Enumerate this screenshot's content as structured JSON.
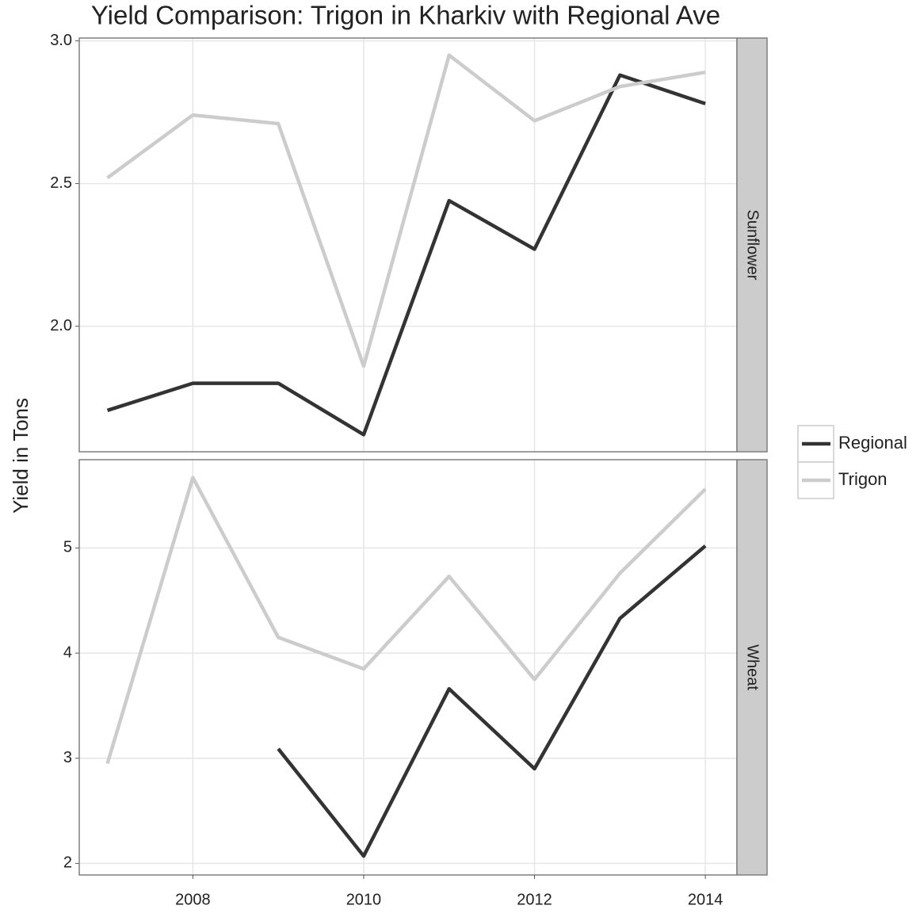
{
  "chart_data": {
    "type": "line",
    "title": "Yield Comparison: Trigon in Kharkiv with Regional Ave",
    "ylabel": "Yield in Tons",
    "x": [
      2007,
      2008,
      2009,
      2010,
      2011,
      2012,
      2013,
      2014
    ],
    "xlim": [
      2006.67,
      2014.37
    ],
    "xticks": [
      2008,
      2010,
      2012,
      2014
    ],
    "grid": true,
    "legend": "right",
    "series": [
      {
        "name": "Regional",
        "color": "#333333"
      },
      {
        "name": "Trigon",
        "color": "#cccccc"
      }
    ],
    "facets": [
      {
        "label": "Sunflower",
        "ylim": [
          1.56,
          3.01
        ],
        "yticks": [
          {
            "value": 2,
            "label": "2.0"
          },
          2.5,
          {
            "value": 3,
            "label": "3.0"
          }
        ],
        "values": [
          [
            1.705,
            1.8,
            1.8,
            1.62,
            2.44,
            2.27,
            2.88,
            2.78
          ],
          [
            2.52,
            2.74,
            2.71,
            1.86,
            2.95,
            2.72,
            2.84,
            2.89
          ]
        ]
      },
      {
        "label": "Wheat",
        "ylim": [
          1.89,
          5.84
        ],
        "yticks": [
          2,
          3,
          4,
          5
        ],
        "values": [
          [
            null,
            null,
            3.09,
            2.07,
            3.66,
            2.9,
            4.33,
            5.02
          ],
          [
            2.95,
            5.67,
            4.15,
            3.85,
            4.73,
            3.75,
            4.76,
            5.56
          ]
        ]
      }
    ]
  }
}
